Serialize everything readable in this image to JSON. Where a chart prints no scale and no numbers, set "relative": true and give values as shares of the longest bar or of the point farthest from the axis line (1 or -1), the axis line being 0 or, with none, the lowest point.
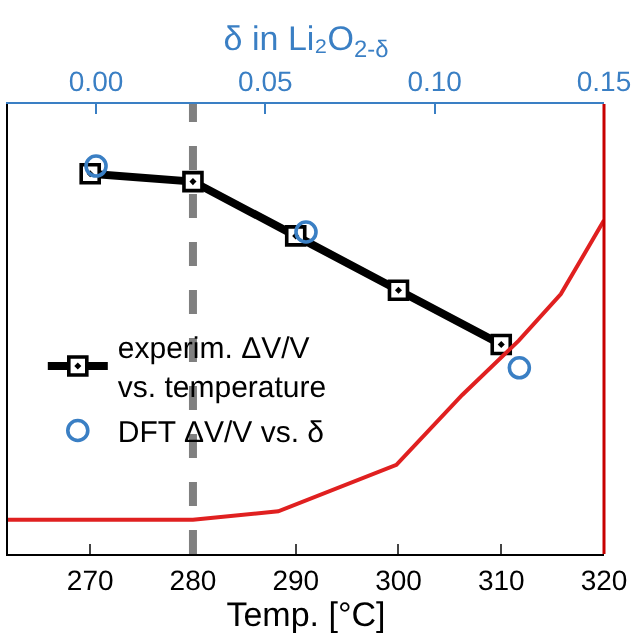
{
  "chart_data": {
    "type": "line",
    "xlabel": "Temp. [°C]",
    "x2label": "δ in Li₂O$_{2-δ}$",
    "relative": true,
    "xlim": [
      262,
      320
    ],
    "xticks": [
      270,
      280,
      290,
      300,
      310,
      320
    ],
    "x2lim": [
      -0.026,
      0.15
    ],
    "x2ticks": [
      {
        "value": 0,
        "label": "0.00"
      },
      {
        "value": 0.05,
        "label": "0.05"
      },
      {
        "value": 0.1,
        "label": "0.10"
      },
      {
        "value": 0.15,
        "label": "0.15"
      }
    ],
    "series": [
      {
        "name": "experim. ΔV/V\nvs. temperature",
        "color": "#000000",
        "marker": "square",
        "x": [
          270,
          280,
          290,
          300,
          310
        ],
        "values": [
          0.98,
          0.96,
          0.82,
          0.68,
          0.54
        ]
      },
      {
        "name": "DFT ΔV/V vs. δ",
        "type": "scatter",
        "axis": "x2",
        "color": "#3a7fc4",
        "marker": "circle",
        "x": [
          0.0,
          0.062,
          0.125
        ],
        "values": [
          1.0,
          0.83,
          0.48
        ]
      },
      {
        "type": "line",
        "color": "#e02020",
        "marker": "none",
        "x": [
          262,
          270,
          280,
          288.3,
          299.8,
          306.2,
          311.7,
          315.8,
          320
        ],
        "values": [
          0.088,
          0.088,
          0.088,
          0.11,
          0.23,
          0.41,
          0.55,
          0.67,
          0.86
        ]
      }
    ],
    "ref_lines": [
      {
        "axis": "x",
        "value": 280,
        "color": "#808080",
        "line_style": "dashed"
      }
    ],
    "legend": "bottom left"
  }
}
